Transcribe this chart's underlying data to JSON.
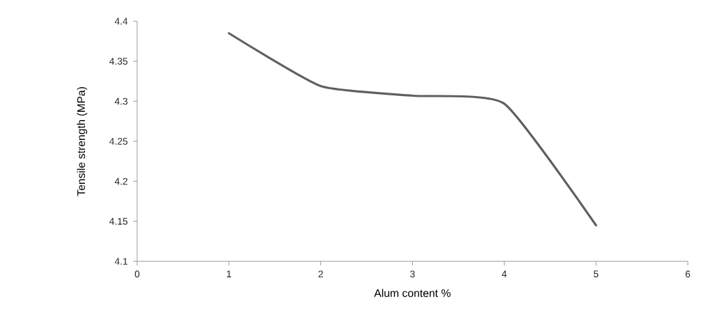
{
  "chart_data": {
    "type": "line",
    "xlabel": "Alum content %",
    "ylabel": "Tensile  strength (MPa)",
    "x": [
      1,
      2,
      3,
      4,
      5
    ],
    "series": [
      {
        "color": "#5f5f5f",
        "values": [
          4.385,
          4.319,
          4.307,
          4.297,
          4.145
        ]
      }
    ],
    "xlim": [
      0,
      6
    ],
    "xticks": [
      0,
      1,
      2,
      3,
      4,
      5,
      6
    ],
    "ylim": [
      4.1,
      4.4
    ],
    "yticks": [
      4.1,
      4.15,
      4.2,
      4.25,
      4.3,
      4.35,
      4.4
    ],
    "grid": false,
    "marker": "none",
    "line_style": "solid"
  }
}
